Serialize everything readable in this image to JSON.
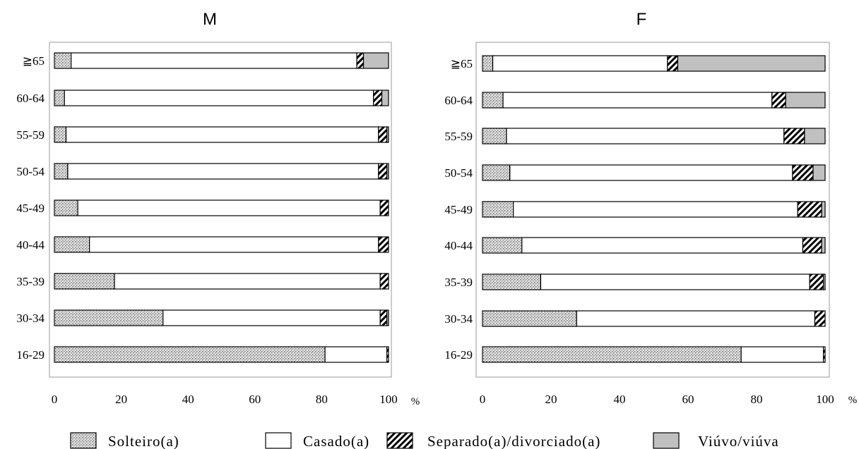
{
  "chart_data": [
    {
      "type": "stacked-bar-horizontal",
      "title": "M",
      "unit": "%",
      "xlim": [
        0,
        100
      ],
      "xticks": [
        "0",
        "20",
        "40",
        "60",
        "80",
        "100"
      ],
      "categories": [
        "≧65",
        "60-64",
        "55-59",
        "50-54",
        "45-49",
        "40-44",
        "35-39",
        "30-34",
        "16-29"
      ],
      "series": [
        {
          "name": "Solteiro(a)",
          "values": [
            5,
            3,
            3.5,
            4,
            7,
            10.5,
            18,
            32.5,
            81
          ]
        },
        {
          "name": "Casado(a)",
          "values": [
            85.5,
            92.5,
            93.5,
            93,
            90.5,
            86.5,
            79.5,
            65,
            18.5
          ]
        },
        {
          "name": "Separado(a)/divorciado(a)",
          "values": [
            2,
            2.5,
            2.5,
            2.5,
            2.5,
            3,
            2.5,
            2,
            0.5
          ]
        },
        {
          "name": "Viúvo/viúva",
          "values": [
            7.5,
            2,
            0.5,
            0.5,
            0,
            0,
            0,
            0.5,
            0
          ]
        }
      ]
    },
    {
      "type": "stacked-bar-horizontal",
      "title": "F",
      "unit": "%",
      "xlim": [
        0,
        100
      ],
      "xticks": [
        "0",
        "20",
        "40",
        "60",
        "80",
        "100"
      ],
      "categories": [
        "≧65",
        "60-64",
        "55-59",
        "50-54",
        "45-49",
        "40-44",
        "35-39",
        "30-34",
        "16-29"
      ],
      "series": [
        {
          "name": "Solteiro(a)",
          "values": [
            3,
            6,
            7,
            8,
            9,
            11.5,
            17,
            27.5,
            75.5
          ]
        },
        {
          "name": "Casado(a)",
          "values": [
            51,
            78.5,
            81,
            82.5,
            83,
            82,
            78.5,
            69.5,
            24
          ]
        },
        {
          "name": "Separado(a)/divorciado(a)",
          "values": [
            3,
            4,
            6,
            6,
            7,
            5.5,
            4,
            3,
            0.5
          ]
        },
        {
          "name": "Viúvo/viúva",
          "values": [
            43,
            11.5,
            6,
            3.5,
            1,
            1,
            0.5,
            0,
            0
          ]
        }
      ]
    }
  ],
  "legend": [
    {
      "label": "Solteiro(a)",
      "pattern": "crosshatch"
    },
    {
      "label": "Casado(a)",
      "pattern": "white"
    },
    {
      "label": "Separado(a)/divorciado(a)",
      "pattern": "diagonal"
    },
    {
      "label": "Viúvo/viúva",
      "pattern": "gray"
    }
  ],
  "colors": {
    "gray": "#c0c0c0",
    "stroke": "#000000",
    "fill": "#ffffff"
  }
}
